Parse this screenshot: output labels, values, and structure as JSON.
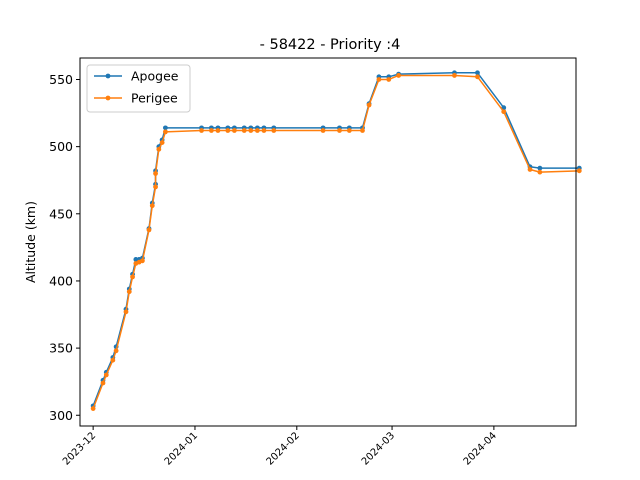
{
  "chart_data": {
    "type": "line",
    "title": "- 58422 - Priority :4",
    "xlabel": "",
    "ylabel": "Altitude (km)",
    "ylim": [
      292,
      566
    ],
    "yticks": [
      300,
      350,
      400,
      450,
      500,
      550
    ],
    "xlim": [
      "2023-11-27",
      "2024-04-26"
    ],
    "xticks": [
      "2023-12",
      "2024-01",
      "2024-02",
      "2024-03",
      "2024-04"
    ],
    "legend_position": "top-left",
    "grid": false,
    "series": [
      {
        "name": "Apogee",
        "color": "#1f77b4",
        "x": [
          "2023-12-01",
          "2023-12-04",
          "2023-12-05",
          "2023-12-07",
          "2023-12-08",
          "2023-12-11",
          "2023-12-12",
          "2023-12-13",
          "2023-12-14",
          "2023-12-15",
          "2023-12-16",
          "2023-12-18",
          "2023-12-19",
          "2023-12-20",
          "2023-12-20",
          "2023-12-21",
          "2023-12-22",
          "2023-12-23",
          "2024-01-03",
          "2024-01-06",
          "2024-01-08",
          "2024-01-11",
          "2024-01-13",
          "2024-01-16",
          "2024-01-18",
          "2024-01-20",
          "2024-01-22",
          "2024-01-25",
          "2024-02-09",
          "2024-02-14",
          "2024-02-17",
          "2024-02-21",
          "2024-02-23",
          "2024-02-26",
          "2024-02-29",
          "2024-03-03",
          "2024-03-20",
          "2024-03-27",
          "2024-04-04",
          "2024-04-12",
          "2024-04-15",
          "2024-04-27"
        ],
        "y": [
          307,
          326,
          332,
          343,
          351,
          379,
          394,
          405,
          416,
          416,
          417,
          439,
          458,
          472,
          482,
          500,
          505,
          514,
          514,
          514,
          514,
          514,
          514,
          514,
          514,
          514,
          514,
          514,
          514,
          514,
          514,
          514,
          532,
          552,
          552,
          554,
          555,
          555,
          529,
          485,
          484,
          484
        ]
      },
      {
        "name": "Perigee",
        "color": "#ff7f0e",
        "x": [
          "2023-12-01",
          "2023-12-04",
          "2023-12-05",
          "2023-12-07",
          "2023-12-08",
          "2023-12-11",
          "2023-12-12",
          "2023-12-13",
          "2023-12-14",
          "2023-12-15",
          "2023-12-16",
          "2023-12-18",
          "2023-12-19",
          "2023-12-20",
          "2023-12-20",
          "2023-12-21",
          "2023-12-22",
          "2023-12-23",
          "2024-01-03",
          "2024-01-06",
          "2024-01-08",
          "2024-01-11",
          "2024-01-13",
          "2024-01-16",
          "2024-01-18",
          "2024-01-20",
          "2024-01-22",
          "2024-01-25",
          "2024-02-09",
          "2024-02-14",
          "2024-02-17",
          "2024-02-21",
          "2024-02-23",
          "2024-02-26",
          "2024-02-29",
          "2024-03-03",
          "2024-03-20",
          "2024-03-27",
          "2024-04-04",
          "2024-04-12",
          "2024-04-15",
          "2024-04-27"
        ],
        "y": [
          305,
          324,
          330,
          341,
          348,
          377,
          392,
          403,
          413,
          414,
          415,
          438,
          456,
          470,
          480,
          498,
          503,
          511,
          512,
          512,
          512,
          512,
          512,
          512,
          512,
          512,
          512,
          512,
          512,
          512,
          512,
          512,
          531,
          550,
          550,
          553,
          553,
          552,
          526,
          483,
          481,
          482
        ]
      }
    ]
  }
}
